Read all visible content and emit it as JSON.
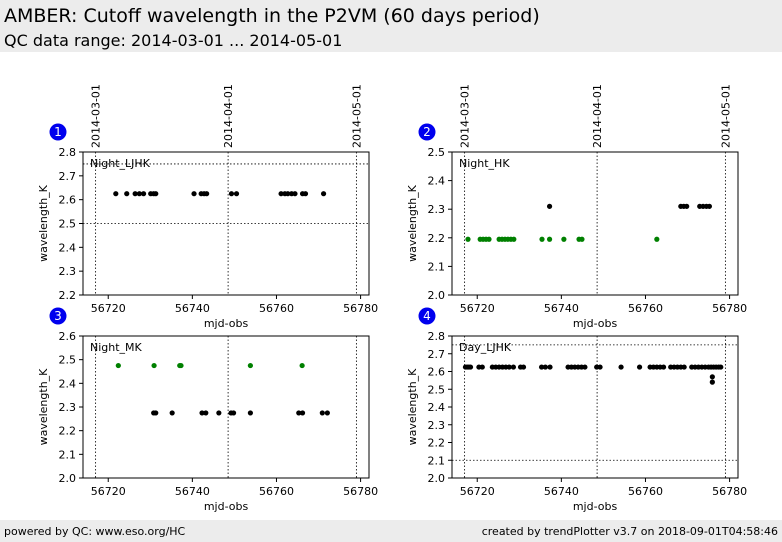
{
  "header": {
    "title": "AMBER: Cutoff wavelength in the P2VM (60 days period)",
    "subtitle": "QC data range: 2014-03-01 ... 2014-05-01"
  },
  "footer": {
    "left": "powered by QC: www.eso.org/HC",
    "right": "created by trendPlotter v3.7 on 2018-09-01T04:58:46"
  },
  "colors": {
    "badge": "#0000ee",
    "black_points": "#000000",
    "green_points": "#008000"
  },
  "date_ticks": [
    {
      "label": "2014-03-01",
      "mjd": 56717
    },
    {
      "label": "2014-04-01",
      "mjd": 56748.5
    },
    {
      "label": "2014-05-01",
      "mjd": 56779
    }
  ],
  "chart_data": [
    {
      "type": "scatter",
      "panel": "1",
      "label": "Night_LJHK",
      "xlabel": "mjd-obs",
      "ylabel": "wavelength_K",
      "xlim": [
        56714,
        56782
      ],
      "ylim": [
        2.2,
        2.8
      ],
      "xticks": [
        56720,
        56740,
        56760,
        56780
      ],
      "yticks": [
        2.2,
        2.3,
        2.4,
        2.5,
        2.6,
        2.7,
        2.8
      ],
      "hlines": [
        2.5,
        2.75
      ],
      "series": [
        {
          "color": "#000000",
          "x": [
            56721.8,
            56724.4,
            56726.4,
            56727.4,
            56728.4,
            56730.1,
            56730.8,
            56731.3,
            56740.4,
            56742.1,
            56742.8,
            56743.4,
            56749.3,
            56750.5,
            56761.1,
            56762.0,
            56762.7,
            56763.6,
            56764.4,
            56766.2,
            56766.9,
            56771.2
          ],
          "y": [
            2.625,
            2.625,
            2.625,
            2.625,
            2.625,
            2.625,
            2.625,
            2.625,
            2.625,
            2.625,
            2.625,
            2.625,
            2.625,
            2.625,
            2.625,
            2.625,
            2.625,
            2.625,
            2.625,
            2.625,
            2.625,
            2.625
          ]
        }
      ]
    },
    {
      "type": "scatter",
      "panel": "2",
      "label": "Night_HK",
      "xlabel": "mjd-obs",
      "ylabel": "wavelength_K",
      "xlim": [
        56714,
        56782
      ],
      "ylim": [
        2.0,
        2.5
      ],
      "xticks": [
        56720,
        56740,
        56760,
        56780
      ],
      "yticks": [
        2.0,
        2.1,
        2.2,
        2.3,
        2.4,
        2.5
      ],
      "hlines": [],
      "series": [
        {
          "color": "#008000",
          "x": [
            56717.8,
            56720.7,
            56721.4,
            56722.1,
            56722.8,
            56725.2,
            56725.9,
            56726.6,
            56727.3,
            56728.0,
            56728.7,
            56735.4,
            56737.2,
            56740.6,
            56744.2,
            56744.9,
            56762.7
          ],
          "y": [
            2.195,
            2.195,
            2.195,
            2.195,
            2.195,
            2.195,
            2.195,
            2.195,
            2.195,
            2.195,
            2.195,
            2.195,
            2.195,
            2.195,
            2.195,
            2.195,
            2.195
          ]
        },
        {
          "color": "#000000",
          "x": [
            56737.2,
            56768.4,
            56769.1,
            56769.8,
            56772.9,
            56773.7,
            56774.5,
            56775.2
          ],
          "y": [
            2.31,
            2.31,
            2.31,
            2.31,
            2.31,
            2.31,
            2.31,
            2.31
          ]
        }
      ]
    },
    {
      "type": "scatter",
      "panel": "3",
      "label": "Night_MK",
      "xlabel": "mjd-obs",
      "ylabel": "wavelength_K",
      "xlim": [
        56714,
        56782
      ],
      "ylim": [
        2.0,
        2.6
      ],
      "xticks": [
        56720,
        56740,
        56760,
        56780
      ],
      "yticks": [
        2.0,
        2.1,
        2.2,
        2.3,
        2.4,
        2.5,
        2.6
      ],
      "hlines": [],
      "series": [
        {
          "color": "#008000",
          "x": [
            56722.4,
            56730.9,
            56737.0,
            56737.3,
            56753.8,
            56766.1
          ],
          "y": [
            2.475,
            2.475,
            2.475,
            2.475,
            2.475,
            2.475
          ]
        },
        {
          "color": "#000000",
          "x": [
            56730.8,
            56731.3,
            56735.2,
            56742.3,
            56743.2,
            56746.3,
            56749.2,
            56749.8,
            56753.8,
            56765.3,
            56766.2,
            56770.9,
            56772.1
          ],
          "y": [
            2.275,
            2.275,
            2.275,
            2.275,
            2.275,
            2.275,
            2.275,
            2.275,
            2.275,
            2.275,
            2.275,
            2.275,
            2.275
          ]
        }
      ]
    },
    {
      "type": "scatter",
      "panel": "4",
      "label": "Day_LJHK",
      "xlabel": "mjd-obs",
      "ylabel": "wavelength_K",
      "xlim": [
        56714,
        56782
      ],
      "ylim": [
        2.0,
        2.8
      ],
      "xticks": [
        56720,
        56740,
        56760,
        56780
      ],
      "yticks": [
        2.0,
        2.1,
        2.2,
        2.3,
        2.4,
        2.5,
        2.6,
        2.7,
        2.8
      ],
      "hlines": [
        2.1,
        2.75
      ],
      "series": [
        {
          "color": "#000000",
          "x": [
            56717.2,
            56717.6,
            56718.0,
            56718.4,
            56720.4,
            56721.2,
            56723.6,
            56724.4,
            56725.2,
            56726.0,
            56726.8,
            56727.6,
            56728.6,
            56730.3,
            56731.0,
            56735.3,
            56736.2,
            56737.3,
            56741.6,
            56742.4,
            56743.2,
            56744.0,
            56744.8,
            56745.6,
            56748.4,
            56749.2,
            56754.2,
            56758.6,
            56761.1,
            56761.9,
            56762.7,
            56763.5,
            56764.3,
            56766.0,
            56766.8,
            56767.6,
            56768.4,
            56769.2,
            56771.0,
            56771.8,
            56772.6,
            56773.4,
            56774.2,
            56775.0,
            56775.6,
            56776.2,
            56776.8,
            56777.4,
            56777.9,
            56775.9,
            56775.9
          ],
          "y": [
            2.625,
            2.625,
            2.625,
            2.625,
            2.625,
            2.625,
            2.625,
            2.625,
            2.625,
            2.625,
            2.625,
            2.625,
            2.625,
            2.625,
            2.625,
            2.625,
            2.625,
            2.625,
            2.625,
            2.625,
            2.625,
            2.625,
            2.625,
            2.625,
            2.625,
            2.625,
            2.625,
            2.625,
            2.625,
            2.625,
            2.625,
            2.625,
            2.625,
            2.625,
            2.625,
            2.625,
            2.625,
            2.625,
            2.625,
            2.625,
            2.625,
            2.625,
            2.625,
            2.625,
            2.625,
            2.625,
            2.625,
            2.625,
            2.625,
            2.57,
            2.54
          ]
        }
      ]
    }
  ]
}
